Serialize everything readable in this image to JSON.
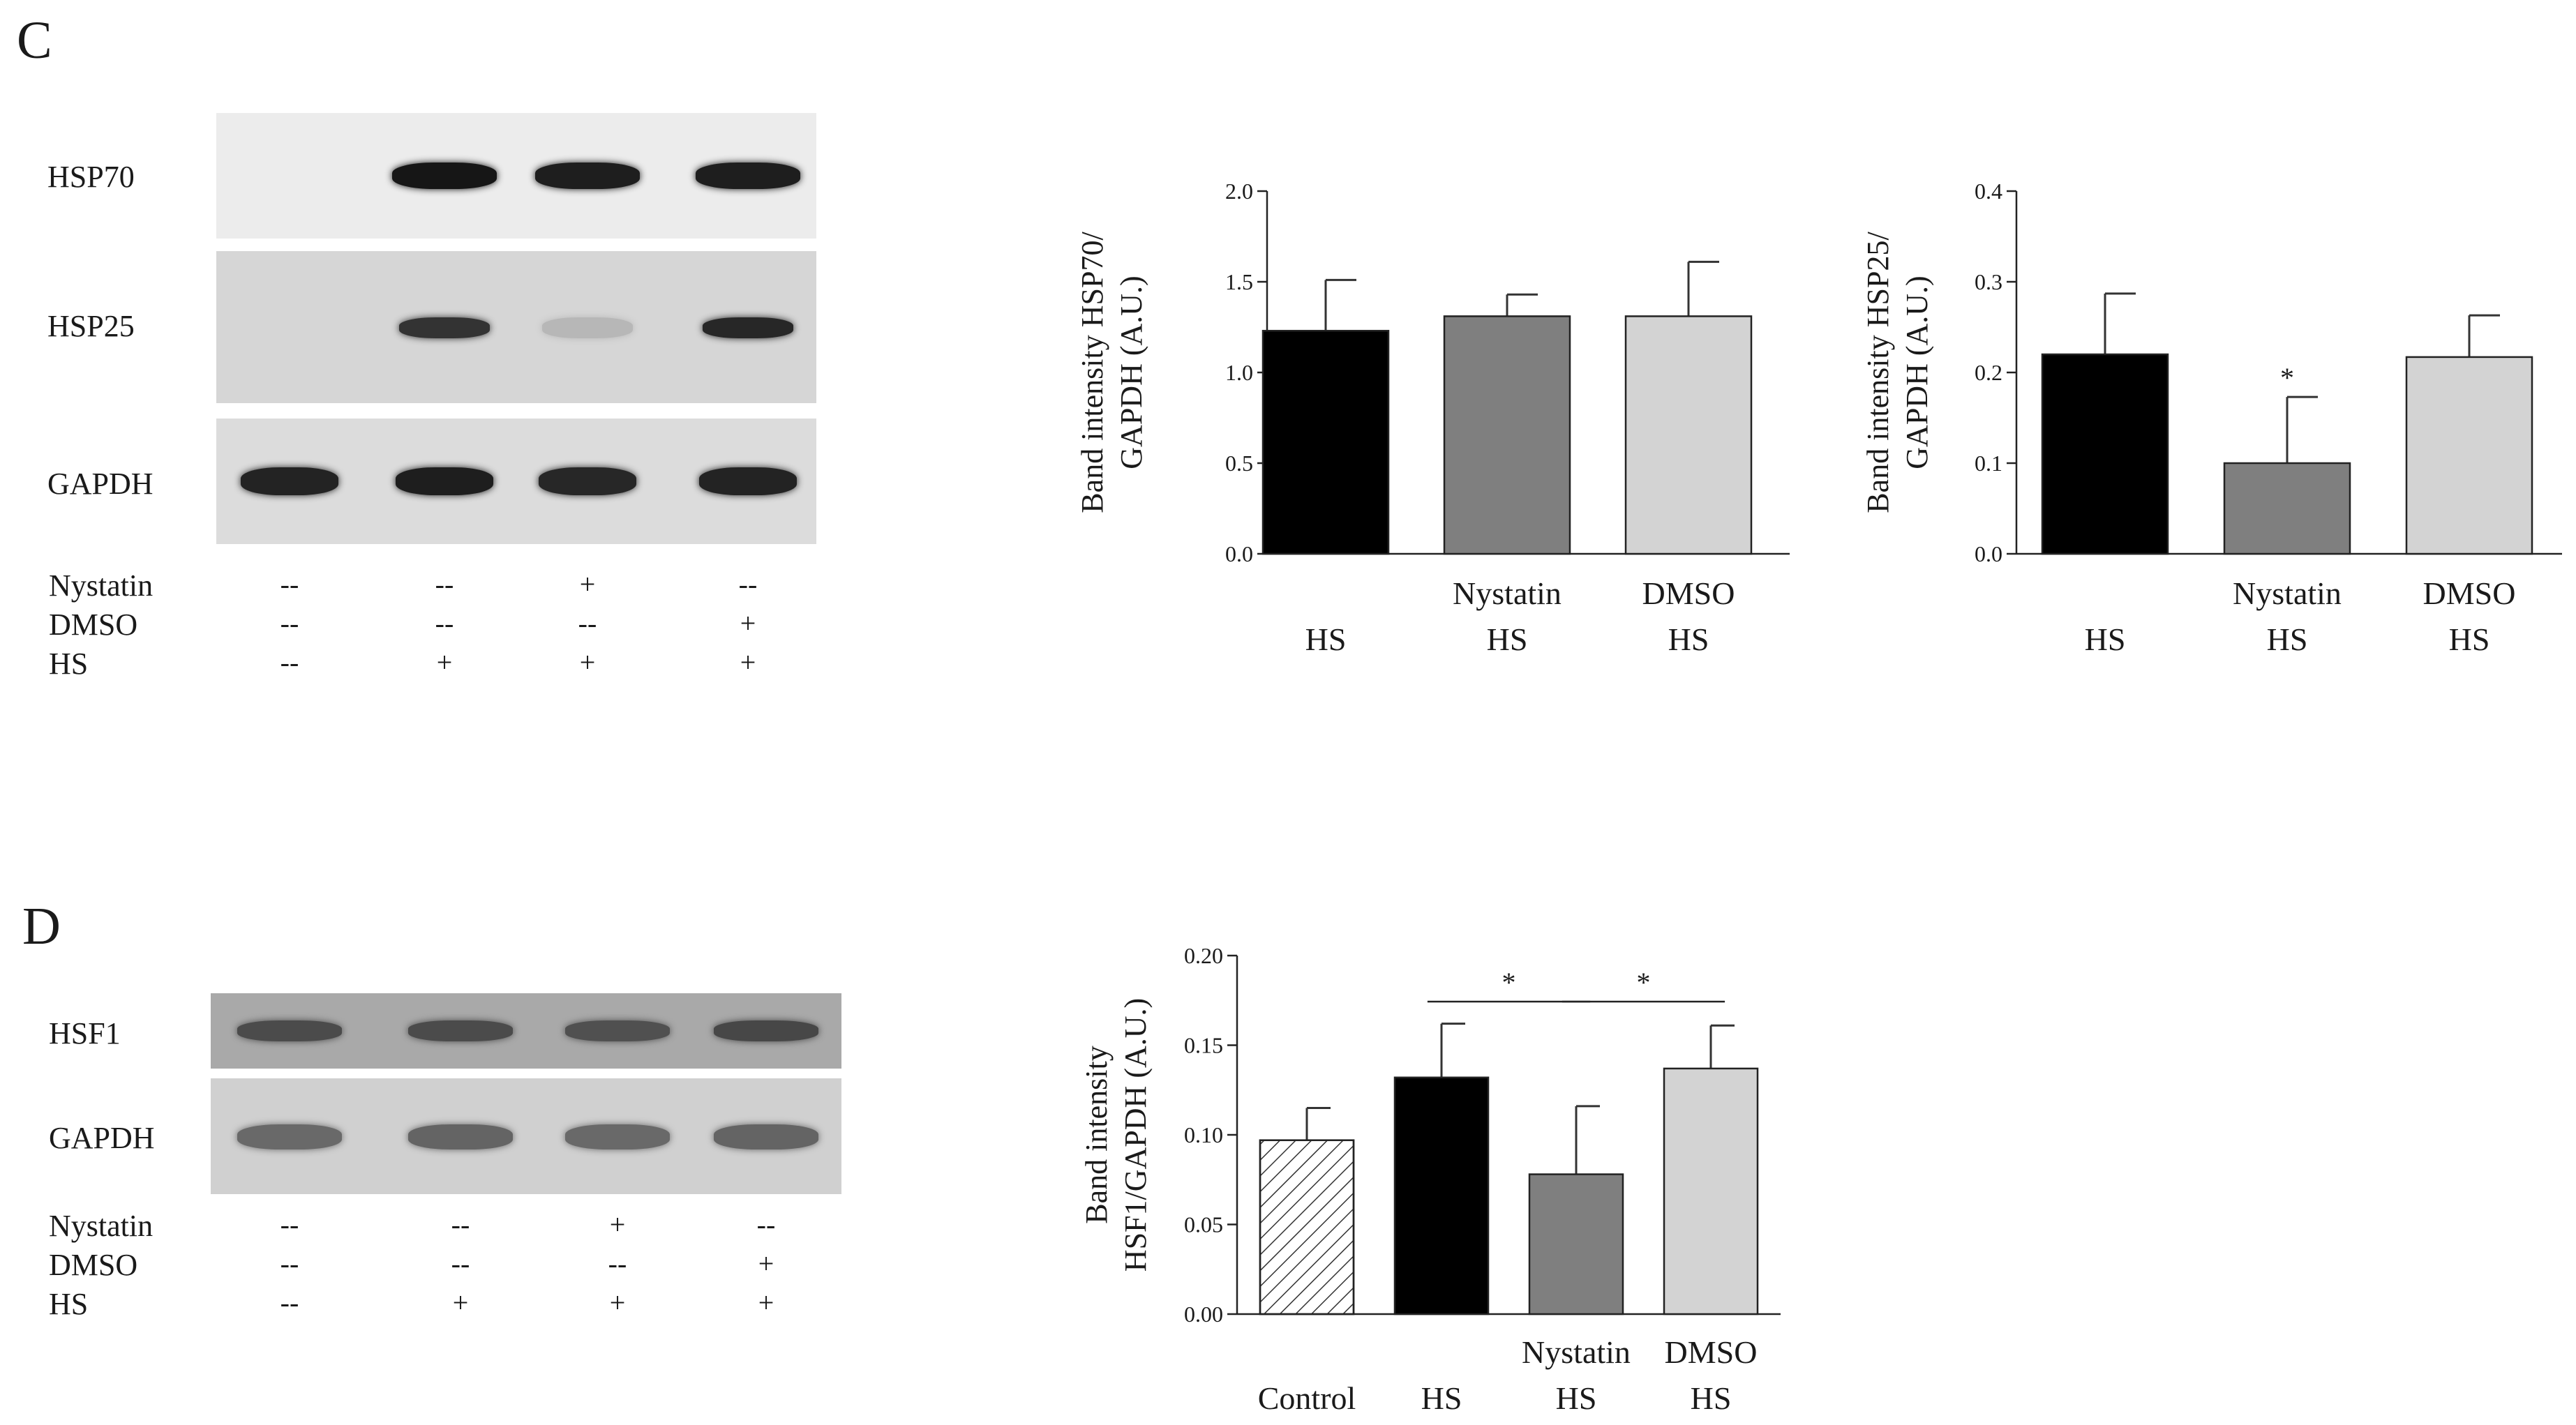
{
  "panels": {
    "C": {
      "letter": "C",
      "blot": {
        "bands": [
          {
            "label": "HSP70",
            "intensities": [
              0.0,
              0.95,
              0.92,
              0.92
            ]
          },
          {
            "label": "HSP25",
            "intensities": [
              0.0,
              0.85,
              0.3,
              0.9
            ]
          },
          {
            "label": "GAPDH",
            "intensities": [
              0.9,
              0.92,
              0.88,
              0.9
            ]
          }
        ],
        "conditions": [
          {
            "label": "Nystatin",
            "values": [
              "--",
              "--",
              "+",
              "--"
            ]
          },
          {
            "label": "DMSO",
            "values": [
              "--",
              "--",
              "--",
              "+"
            ]
          },
          {
            "label": "HS",
            "values": [
              "--",
              "+",
              "+",
              "+"
            ]
          }
        ]
      }
    },
    "D": {
      "letter": "D",
      "blot": {
        "bands": [
          {
            "label": "HSF1",
            "intensities": [
              0.8,
              0.8,
              0.78,
              0.82
            ]
          },
          {
            "label": "GAPDH",
            "intensities": [
              0.7,
              0.72,
              0.7,
              0.72
            ]
          }
        ],
        "conditions": [
          {
            "label": "Nystatin",
            "values": [
              "--",
              "--",
              "+",
              "--"
            ]
          },
          {
            "label": "DMSO",
            "values": [
              "--",
              "--",
              "--",
              "+"
            ]
          },
          {
            "label": "HS",
            "values": [
              "--",
              "+",
              "+",
              "+"
            ]
          }
        ]
      }
    }
  },
  "colors": {
    "black_bar": "#000000",
    "nystatin_bar": "#7f7f7f",
    "dmso_bar": "#d3d3d3",
    "control_bar": "#ffffff"
  },
  "chart_data": [
    {
      "id": "hsp70",
      "type": "bar",
      "ylabel_lines": [
        "Band intensity HSP70/",
        "GAPDH (A.U.)"
      ],
      "ylim": [
        0,
        2.0
      ],
      "yticks": [
        "0.0",
        "0.5",
        "1.0",
        "1.5",
        "2.0"
      ],
      "ytick_values": [
        0,
        0.5,
        1.0,
        1.5,
        2.0
      ],
      "categories": [
        {
          "lines": [
            "HS"
          ],
          "value": 1.23,
          "error": 0.28,
          "color": "#000000",
          "hatch": false
        },
        {
          "lines": [
            "Nystatin",
            "HS"
          ],
          "value": 1.31,
          "error": 0.12,
          "color": "#7f7f7f",
          "hatch": false
        },
        {
          "lines": [
            "DMSO",
            "HS"
          ],
          "value": 1.31,
          "error": 0.3,
          "color": "#d3d3d3",
          "hatch": false
        }
      ],
      "annotations": [],
      "significance": []
    },
    {
      "id": "hsp25",
      "type": "bar",
      "ylabel_lines": [
        "Band intensity HSP25/",
        "GAPDH (A.U.)"
      ],
      "ylim": [
        0,
        0.4
      ],
      "yticks": [
        "0.0",
        "0.1",
        "0.2",
        "0.3",
        "0.4"
      ],
      "ytick_values": [
        0,
        0.1,
        0.2,
        0.3,
        0.4
      ],
      "categories": [
        {
          "lines": [
            "HS"
          ],
          "value": 0.22,
          "error": 0.067,
          "color": "#000000",
          "hatch": false
        },
        {
          "lines": [
            "Nystatin",
            "HS"
          ],
          "value": 0.1,
          "error": 0.073,
          "color": "#7f7f7f",
          "hatch": false
        },
        {
          "lines": [
            "DMSO",
            "HS"
          ],
          "value": 0.217,
          "error": 0.046,
          "color": "#d3d3d3",
          "hatch": false
        }
      ],
      "annotations": [
        {
          "bar": 1,
          "text": "*"
        }
      ],
      "significance": []
    },
    {
      "id": "hsf1",
      "type": "bar",
      "ylabel_lines": [
        "Band intensity",
        "HSF1/GAPDH (A.U.)"
      ],
      "ylim": [
        0,
        0.2
      ],
      "yticks": [
        "0.00",
        "0.05",
        "0.10",
        "0.15",
        "0.20"
      ],
      "ytick_values": [
        0,
        0.05,
        0.1,
        0.15,
        0.2
      ],
      "categories": [
        {
          "lines": [
            "Control"
          ],
          "value": 0.097,
          "error": 0.018,
          "color": "#ffffff",
          "hatch": true
        },
        {
          "lines": [
            "HS"
          ],
          "value": 0.132,
          "error": 0.03,
          "color": "#000000",
          "hatch": false
        },
        {
          "lines": [
            "Nystatin",
            "HS"
          ],
          "value": 0.078,
          "error": 0.038,
          "color": "#7f7f7f",
          "hatch": false
        },
        {
          "lines": [
            "DMSO",
            "HS"
          ],
          "value": 0.137,
          "error": 0.024,
          "color": "#d3d3d3",
          "hatch": false
        }
      ],
      "annotations": [],
      "significance": [
        {
          "from": 1,
          "to": 2,
          "text": "*"
        },
        {
          "from": 2,
          "to": 3,
          "text": "*"
        }
      ]
    }
  ]
}
